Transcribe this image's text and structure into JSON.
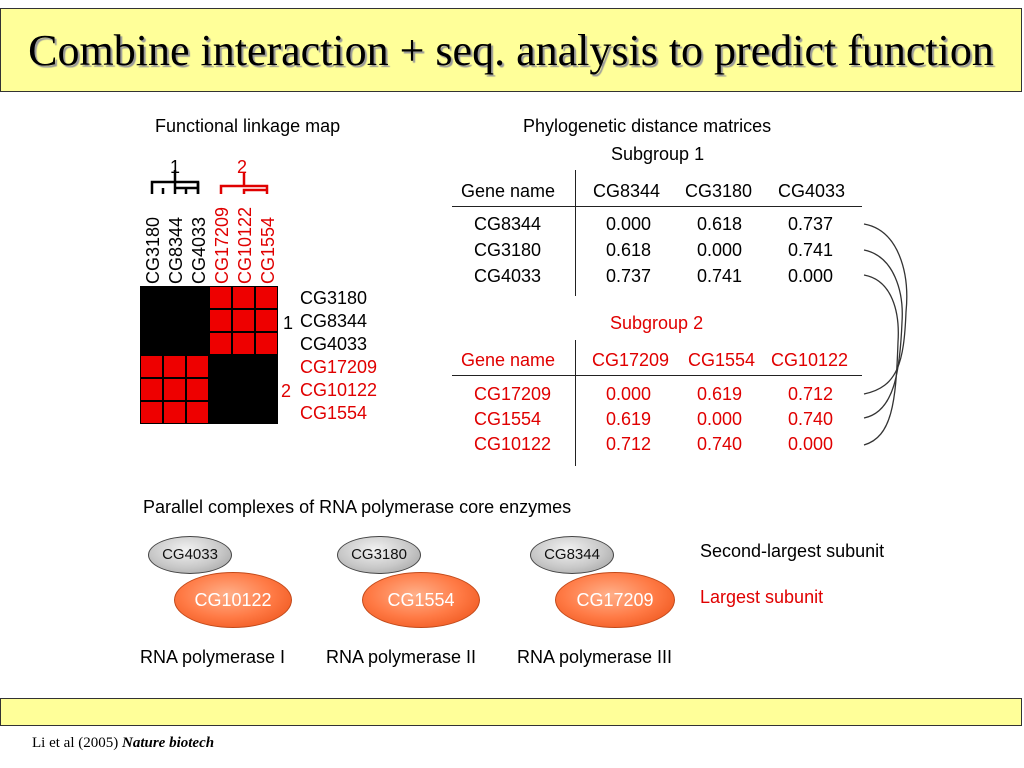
{
  "slide": {
    "title": "Combine interaction + seq. analysis to predict function",
    "citation_prefix": "Li et al (2005)",
    "citation_journal": "Nature biotech"
  },
  "linkage_map": {
    "heading": "Functional linkage map",
    "cluster_label_1": "1",
    "cluster_label_2": "2",
    "column_labels": [
      "CG3180",
      "CG8344",
      "CG4033",
      "CG17209",
      "CG10122",
      "CG1554"
    ],
    "row_labels": [
      "CG3180",
      "CG8344",
      "CG4033",
      "CG17209",
      "CG10122",
      "CG1554"
    ],
    "row_group_1": "1",
    "row_group_2": "2"
  },
  "matrices": {
    "heading": "Phylogenetic distance matrices",
    "subgroup1": {
      "title": "Subgroup 1",
      "header": [
        "Gene name",
        "CG8344",
        "CG3180",
        "CG4033"
      ],
      "rows": [
        [
          "CG8344",
          "0.000",
          "0.618",
          "0.737"
        ],
        [
          "CG3180",
          "0.618",
          "0.000",
          "0.741"
        ],
        [
          "CG4033",
          "0.737",
          "0.741",
          "0.000"
        ]
      ]
    },
    "subgroup2": {
      "title": "Subgroup 2",
      "header": [
        "Gene name",
        "CG17209",
        "CG1554",
        "CG10122"
      ],
      "rows": [
        [
          "CG17209",
          "0.000",
          "0.619",
          "0.712"
        ],
        [
          "CG1554",
          "0.619",
          "0.000",
          "0.740"
        ],
        [
          "CG10122",
          "0.712",
          "0.740",
          "0.000"
        ]
      ]
    }
  },
  "complexes": {
    "heading": "Parallel complexes of RNA polymerase core  enzymes",
    "second_largest_label": "Second-largest subunit",
    "largest_label": "Largest subunit",
    "items": [
      {
        "small": "CG4033",
        "large": "CG10122",
        "name": "RNA polymerase I"
      },
      {
        "small": "CG3180",
        "large": "CG1554",
        "name": "RNA polymerase II"
      },
      {
        "small": "CG8344",
        "large": "CG17209",
        "name": "RNA polymerase III"
      }
    ]
  },
  "colors": {
    "title_bg": "#ffff99",
    "accent_red": "#e00000",
    "oval_orange": "#ff7a45",
    "oval_gray": "#c8c8c8"
  }
}
